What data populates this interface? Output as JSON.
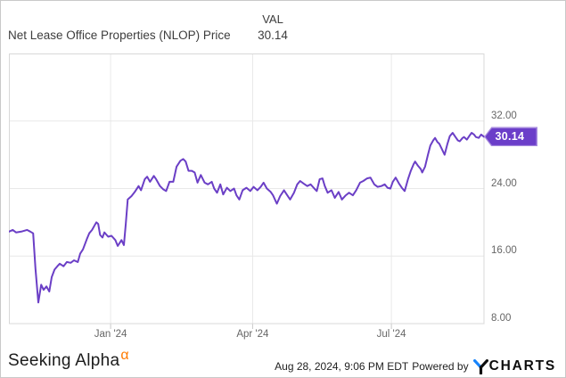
{
  "header": {
    "title": "Net Lease Office Properties (NLOP) Price",
    "val_label": "VAL",
    "val_value": "30.14"
  },
  "badge": {
    "text": "30.14",
    "fill_color": "#6b3ec9",
    "border_color": "#a78bde"
  },
  "footer": {
    "brand": "Seeking Alpha",
    "brand_alpha": "α",
    "brand_alpha_color": "#ff7a00",
    "timestamp": "Aug 28, 2024, 9:06 PM EDT",
    "powered_by": "Powered by",
    "ycharts_text": "CHARTS",
    "ycharts_blue": "#1784fb"
  },
  "chart_data": {
    "type": "line",
    "title": "Net Lease Office Properties (NLOP) Price",
    "series_name": "NLOP Price",
    "last_value": 30.14,
    "line_color": "#6b3fc6",
    "grid_color": "#e8e8e8",
    "border_color": "#d8d8d8",
    "tick_color": "#c9c9c9",
    "ylim": [
      8,
      40
    ],
    "legend": "none",
    "grid": true,
    "y_ticks": [
      {
        "value": 32,
        "label": "32.00"
      },
      {
        "value": 24,
        "label": "24.00"
      },
      {
        "value": 16,
        "label": "16.00"
      },
      {
        "value": 8,
        "label": "8.00"
      }
    ],
    "x_ticks": [
      {
        "t": 0.214,
        "label": "Jan '24"
      },
      {
        "t": 0.513,
        "label": "Apr '24"
      },
      {
        "t": 0.805,
        "label": "Jul '24"
      }
    ],
    "points": [
      [
        0,
        18.9
      ],
      [
        0.008,
        19.1
      ],
      [
        0.015,
        18.8
      ],
      [
        0.026,
        18.9
      ],
      [
        0.038,
        19.1
      ],
      [
        0.045,
        18.9
      ],
      [
        0.051,
        18.7
      ],
      [
        0.056,
        14.5
      ],
      [
        0.062,
        10.5
      ],
      [
        0.068,
        12.6
      ],
      [
        0.073,
        12
      ],
      [
        0.079,
        12.4
      ],
      [
        0.085,
        11.8
      ],
      [
        0.09,
        13.5
      ],
      [
        0.096,
        14.4
      ],
      [
        0.102,
        14.8
      ],
      [
        0.107,
        15.1
      ],
      [
        0.115,
        14.8
      ],
      [
        0.122,
        15.3
      ],
      [
        0.13,
        15.2
      ],
      [
        0.137,
        15.5
      ],
      [
        0.145,
        15.3
      ],
      [
        0.15,
        16.3
      ],
      [
        0.156,
        16.8
      ],
      [
        0.164,
        18
      ],
      [
        0.169,
        18.7
      ],
      [
        0.175,
        19.1
      ],
      [
        0.18,
        19.6
      ],
      [
        0.184,
        20
      ],
      [
        0.188,
        19.8
      ],
      [
        0.192,
        18.5
      ],
      [
        0.197,
        18.2
      ],
      [
        0.201,
        18.8
      ],
      [
        0.209,
        18.3
      ],
      [
        0.216,
        18.4
      ],
      [
        0.224,
        17.9
      ],
      [
        0.229,
        17.2
      ],
      [
        0.237,
        17.9
      ],
      [
        0.242,
        17.3
      ],
      [
        0.246,
        19.8
      ],
      [
        0.25,
        22.7
      ],
      [
        0.258,
        23.1
      ],
      [
        0.265,
        23.6
      ],
      [
        0.273,
        24.3
      ],
      [
        0.278,
        23.8
      ],
      [
        0.286,
        25.1
      ],
      [
        0.291,
        25.4
      ],
      [
        0.297,
        24.8
      ],
      [
        0.305,
        25.5
      ],
      [
        0.31,
        25.1
      ],
      [
        0.318,
        24.3
      ],
      [
        0.325,
        23.9
      ],
      [
        0.331,
        23.7
      ],
      [
        0.338,
        24.8
      ],
      [
        0.346,
        24.8
      ],
      [
        0.353,
        26.6
      ],
      [
        0.361,
        27.3
      ],
      [
        0.367,
        27.5
      ],
      [
        0.372,
        27.2
      ],
      [
        0.378,
        26.1
      ],
      [
        0.385,
        26.1
      ],
      [
        0.391,
        25.9
      ],
      [
        0.397,
        24.7
      ],
      [
        0.404,
        25.6
      ],
      [
        0.412,
        24.7
      ],
      [
        0.419,
        24.5
      ],
      [
        0.427,
        24.8
      ],
      [
        0.432,
        24
      ],
      [
        0.438,
        23.5
      ],
      [
        0.445,
        24.5
      ],
      [
        0.451,
        23.3
      ],
      [
        0.459,
        24.1
      ],
      [
        0.466,
        23.7
      ],
      [
        0.474,
        24
      ],
      [
        0.479,
        23.2
      ],
      [
        0.485,
        22.7
      ],
      [
        0.492,
        23.8
      ],
      [
        0.5,
        24.1
      ],
      [
        0.508,
        23.7
      ],
      [
        0.515,
        24.2
      ],
      [
        0.523,
        23.8
      ],
      [
        0.53,
        24.2
      ],
      [
        0.536,
        24.7
      ],
      [
        0.543,
        24
      ],
      [
        0.551,
        23.6
      ],
      [
        0.556,
        23.2
      ],
      [
        0.564,
        22.2
      ],
      [
        0.571,
        23.1
      ],
      [
        0.579,
        23.8
      ],
      [
        0.586,
        23.2
      ],
      [
        0.592,
        22.7
      ],
      [
        0.6,
        23.5
      ],
      [
        0.607,
        24.5
      ],
      [
        0.613,
        24.9
      ],
      [
        0.62,
        24.6
      ],
      [
        0.628,
        24.3
      ],
      [
        0.635,
        24.5
      ],
      [
        0.643,
        24
      ],
      [
        0.648,
        23.7
      ],
      [
        0.654,
        25.1
      ],
      [
        0.66,
        25.2
      ],
      [
        0.665,
        24.3
      ],
      [
        0.671,
        23.5
      ],
      [
        0.679,
        23.8
      ],
      [
        0.686,
        22.9
      ],
      [
        0.694,
        23.6
      ],
      [
        0.701,
        22.7
      ],
      [
        0.709,
        23.2
      ],
      [
        0.716,
        23.5
      ],
      [
        0.724,
        23.2
      ],
      [
        0.731,
        23.8
      ],
      [
        0.739,
        24.7
      ],
      [
        0.746,
        24.9
      ],
      [
        0.754,
        25.2
      ],
      [
        0.761,
        25.3
      ],
      [
        0.769,
        24.5
      ],
      [
        0.776,
        24.2
      ],
      [
        0.784,
        24.3
      ],
      [
        0.791,
        24.5
      ],
      [
        0.797,
        24.1
      ],
      [
        0.803,
        24
      ],
      [
        0.808,
        24.8
      ],
      [
        0.814,
        25.3
      ],
      [
        0.821,
        24.6
      ],
      [
        0.827,
        24.1
      ],
      [
        0.833,
        23.7
      ],
      [
        0.84,
        25.1
      ],
      [
        0.846,
        26.1
      ],
      [
        0.852,
        26.9
      ],
      [
        0.855,
        27.2
      ],
      [
        0.861,
        26.7
      ],
      [
        0.867,
        26.3
      ],
      [
        0.87,
        25.9
      ],
      [
        0.876,
        26.6
      ],
      [
        0.882,
        28
      ],
      [
        0.887,
        29.1
      ],
      [
        0.893,
        29.7
      ],
      [
        0.897,
        30
      ],
      [
        0.902,
        29.5
      ],
      [
        0.906,
        29.3
      ],
      [
        0.912,
        28.6
      ],
      [
        0.917,
        28
      ],
      [
        0.923,
        29.3
      ],
      [
        0.928,
        30.2
      ],
      [
        0.934,
        30.6
      ],
      [
        0.94,
        30.1
      ],
      [
        0.945,
        29.7
      ],
      [
        0.949,
        29.6
      ],
      [
        0.955,
        30
      ],
      [
        0.958,
        30.1
      ],
      [
        0.964,
        29.8
      ],
      [
        0.97,
        30.3
      ],
      [
        0.974,
        30.6
      ],
      [
        0.979,
        30.4
      ],
      [
        0.983,
        30.1
      ],
      [
        0.989,
        30
      ],
      [
        0.994,
        30.4
      ],
      [
        1,
        30.14
      ]
    ]
  }
}
